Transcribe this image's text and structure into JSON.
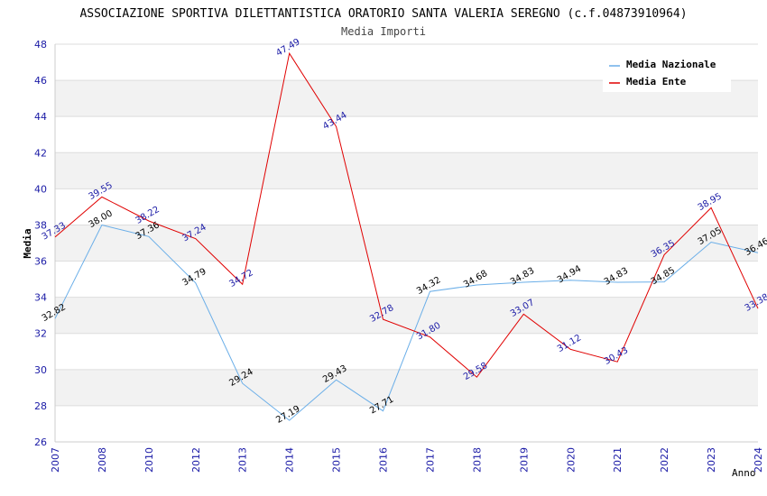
{
  "chart_data": {
    "type": "line",
    "title": "ASSOCIAZIONE SPORTIVA DILETTANTISTICA ORATORIO SANTA VALERIA SEREGNO (c.f.04873910964)",
    "subtitle": "Media Importi",
    "xlabel": "Anno",
    "ylabel": "Media",
    "ylim": [
      26,
      48
    ],
    "yticks": [
      26,
      28,
      30,
      32,
      34,
      36,
      38,
      40,
      42,
      44,
      46,
      48
    ],
    "categories": [
      "2007",
      "2008",
      "2010",
      "2012",
      "2013",
      "2014",
      "2015",
      "2016",
      "2017",
      "2018",
      "2019",
      "2020",
      "2021",
      "2022",
      "2023",
      "2024"
    ],
    "legend_position": "top-right",
    "grid": true,
    "series": [
      {
        "name": "Media Nazionale",
        "color": "#6aaee8",
        "values": [
          32.82,
          38.0,
          37.36,
          34.79,
          29.24,
          27.19,
          29.43,
          27.71,
          34.32,
          34.68,
          34.83,
          34.94,
          34.83,
          34.85,
          37.05,
          36.46
        ],
        "labels": [
          "32.82",
          "38.00",
          "37.36",
          "34.79",
          "29.24",
          "27.19",
          "29.43",
          "27.71",
          "34.32",
          "34.68",
          "34.83",
          "34.94",
          "34.83",
          "34.85",
          "37.05",
          "36.46"
        ]
      },
      {
        "name": "Media Ente",
        "color": "#e00000",
        "values": [
          37.33,
          39.55,
          38.22,
          37.24,
          34.72,
          47.49,
          43.44,
          32.78,
          31.8,
          29.58,
          33.07,
          31.12,
          30.43,
          36.35,
          38.95,
          33.38
        ],
        "labels": [
          "37.33",
          "39.55",
          "38.22",
          "37.24",
          "34.72",
          "47.49",
          "43.44",
          "32.78",
          "31.80",
          "29.58",
          "33.07",
          "31.12",
          "30.43",
          "36.35",
          "38.95",
          "33.38"
        ]
      }
    ]
  }
}
